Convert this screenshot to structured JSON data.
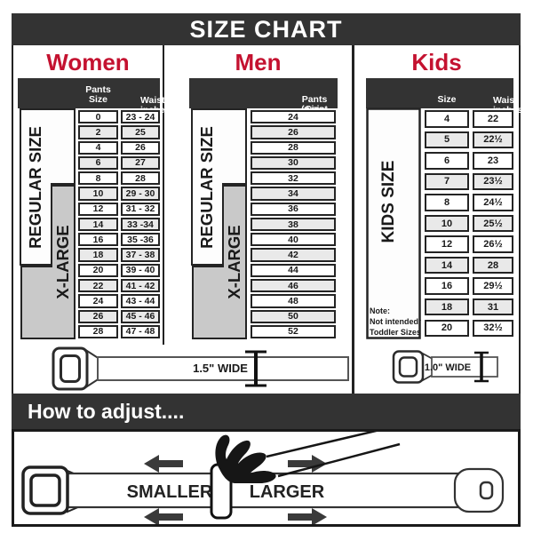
{
  "title": "SIZE CHART",
  "colors": {
    "accent_red": "#c41230",
    "bar_dark": "#333333",
    "row_alt": "#e9e9e9",
    "xlarge_gray": "#c9c9c9"
  },
  "sections": {
    "women": {
      "heading": "Women",
      "columns": {
        "size": "Pants Size",
        "waist_line1": "Waist",
        "waist_line2": "inches"
      },
      "regular_label": "REGULAR SIZE",
      "xlarge_label": "X-LARGE",
      "rows": [
        [
          "0",
          "23 - 24"
        ],
        [
          "2",
          "25"
        ],
        [
          "4",
          "26"
        ],
        [
          "6",
          "27"
        ],
        [
          "8",
          "28"
        ],
        [
          "10",
          "29 - 30"
        ],
        [
          "12",
          "31 - 32"
        ],
        [
          "14",
          "33 -34"
        ],
        [
          "16",
          "35 -36"
        ],
        [
          "18",
          "37 - 38"
        ],
        [
          "20",
          "39 - 40"
        ],
        [
          "22",
          "41 - 42"
        ],
        [
          "24",
          "43 - 44"
        ],
        [
          "26",
          "45 - 46"
        ],
        [
          "28",
          "47 - 48"
        ]
      ]
    },
    "men": {
      "heading": "Men",
      "column_line1": "Pants Size",
      "column_line2": "(waist inches)",
      "regular_label": "REGULAR SIZE",
      "xlarge_label": "X-LARGE",
      "rows": [
        "24",
        "26",
        "28",
        "30",
        "32",
        "34",
        "36",
        "38",
        "40",
        "42",
        "44",
        "46",
        "48",
        "50",
        "52"
      ]
    },
    "kids": {
      "heading": "Kids",
      "columns": {
        "size": "Size",
        "waist_line1": "Waist",
        "waist_line2": "inches"
      },
      "side_label": "KIDS SIZE",
      "note_lines": [
        "Note:",
        "Not intended for",
        "Toddler Sizes (T)"
      ],
      "rows": [
        [
          "4",
          "22"
        ],
        [
          "5",
          "22½"
        ],
        [
          "6",
          "23"
        ],
        [
          "7",
          "23½"
        ],
        [
          "8",
          "24½"
        ],
        [
          "10",
          "25½"
        ],
        [
          "12",
          "26½"
        ],
        [
          "14",
          "28"
        ],
        [
          "16",
          "29½"
        ],
        [
          "18",
          "31"
        ],
        [
          "20",
          "32½"
        ]
      ]
    }
  },
  "belts": {
    "women_men_width_label": "1.5\" WIDE",
    "kids_width_label": "1.0\" WIDE"
  },
  "how_to": {
    "title": "How to adjust....",
    "smaller_label": "SMALLER",
    "larger_label": "LARGER"
  }
}
